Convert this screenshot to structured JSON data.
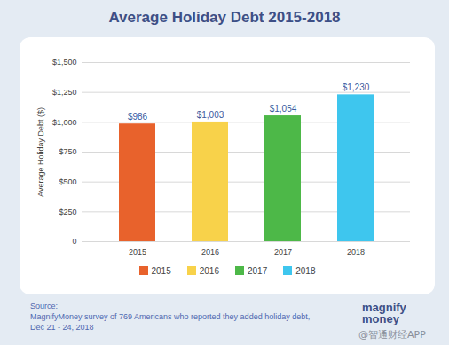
{
  "chart_data": {
    "type": "bar",
    "title": "Average Holiday Debt 2015-2018",
    "y_label": "Average Holiday Debt ($)",
    "categories": [
      "2015",
      "2016",
      "2017",
      "2018"
    ],
    "values": [
      986,
      1003,
      1054,
      1230
    ],
    "value_labels": [
      "$986",
      "$1,003",
      "$1,054",
      "$1,230"
    ],
    "data_labels": true,
    "colors": [
      "#e8622c",
      "#f8d24a",
      "#4db848",
      "#3ec6ee"
    ],
    "ylim": [
      0,
      1500
    ],
    "yticks": [
      0,
      {
        "value": 250,
        "label": "$250"
      },
      {
        "value": 500,
        "label": "$500"
      },
      {
        "value": 750,
        "label": "$750"
      },
      {
        "value": 1000,
        "label": "$1,000"
      },
      {
        "value": 1250,
        "label": "$1,250"
      },
      {
        "value": 1500,
        "label": "$1,500"
      }
    ],
    "grid": true,
    "legend": "bottom",
    "annotations": [
      "Source:",
      "MagnifyMoney survey of 769 Americans who reported they added holiday debt, Dec 21 - 24, 2018",
      "magnify money",
      "@智通财经APP"
    ]
  }
}
